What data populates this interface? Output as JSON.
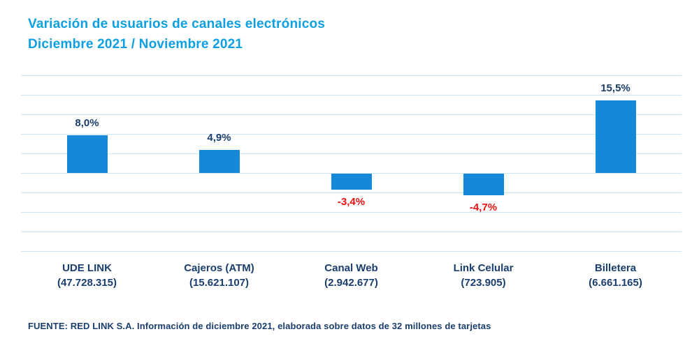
{
  "title": {
    "line1": "Variación de usuarios de canales electrónicos",
    "line2": "Diciembre 2021 / Noviembre 2021"
  },
  "footer": "FUENTE: RED LINK S.A. Información de diciembre 2021, elaborada sobre datos de 32 millones de tarjetas",
  "colors": {
    "title": "#0C9FE3",
    "bar": "#1588D8",
    "positive_label": "#1A3E6E",
    "negative_label": "#EE1111",
    "gridline": "#CBE7F6",
    "category": "#1A3E6E",
    "footer": "#1A3E6E"
  },
  "chart_data": {
    "type": "bar",
    "title": "Variación de usuarios de canales electrónicos Diciembre 2021 / Noviembre 2021",
    "categories": [
      "UDE LINK",
      "Cajeros (ATM)",
      "Canal Web",
      "Link Celular",
      "Billetera"
    ],
    "category_values": [
      "(47.728.315)",
      "(15.621.107)",
      "(2.942.677)",
      "(723.905)",
      "(6.661.165)"
    ],
    "values": [
      8.0,
      4.9,
      -3.4,
      -4.7,
      15.5
    ],
    "value_labels": [
      "8,0%",
      "4,9%",
      "-3,4%",
      "-4,7%",
      "15,5%"
    ],
    "xlabel": "",
    "ylabel": "",
    "baseline": 0,
    "grid": true,
    "gridline_count": 10,
    "y_axis_visible": false,
    "legend": false
  }
}
